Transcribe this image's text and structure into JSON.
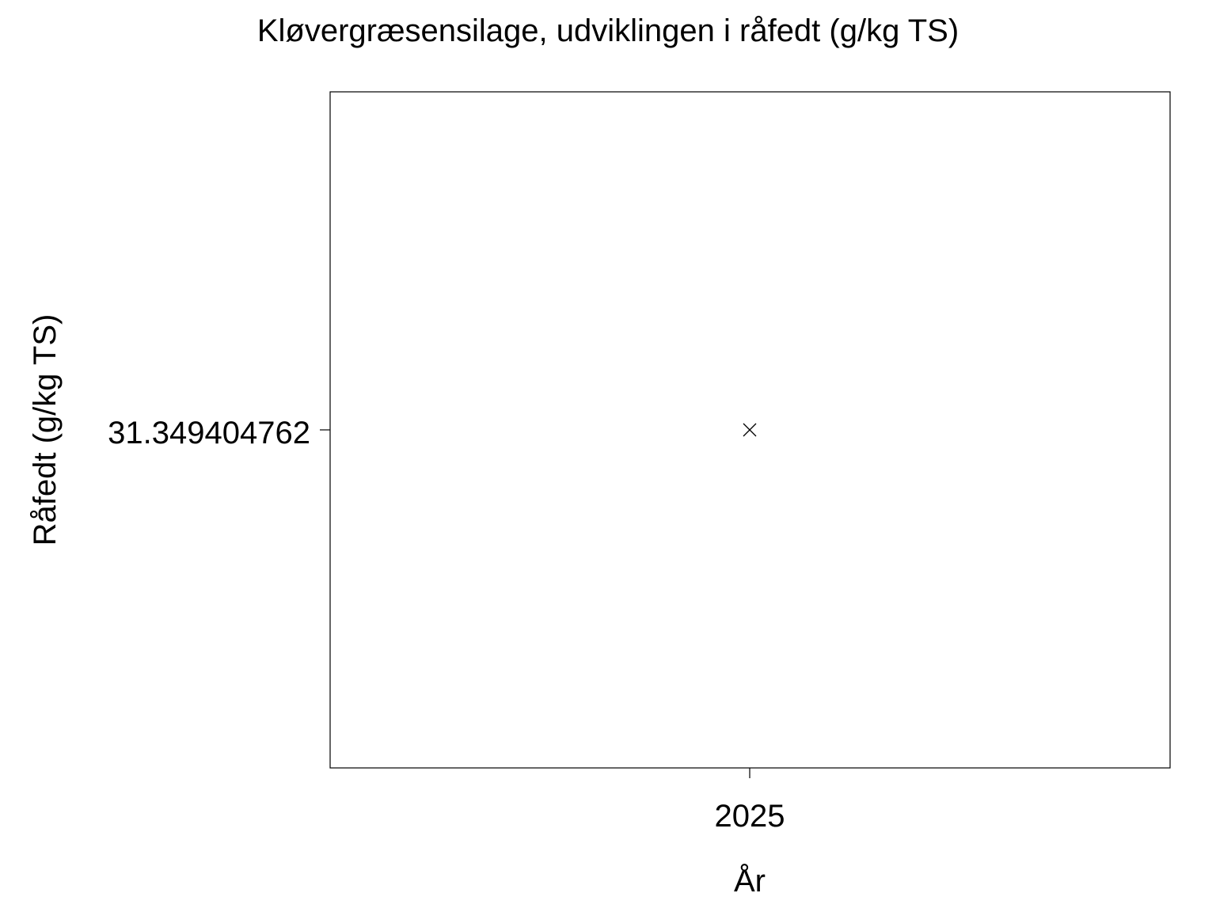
{
  "chart_data": {
    "type": "scatter",
    "title": "Kløvergræsensilage, udviklingen i råfedt (g/kg TS)",
    "xlabel": "År",
    "ylabel": "Råfedt (g/kg TS)",
    "x_ticks": [
      "2025"
    ],
    "y_ticks": [
      "31.349404762"
    ],
    "points": [
      {
        "x": 2025,
        "y": 31.349404762
      }
    ],
    "marker": "x",
    "grid": false,
    "color": "#000000"
  }
}
